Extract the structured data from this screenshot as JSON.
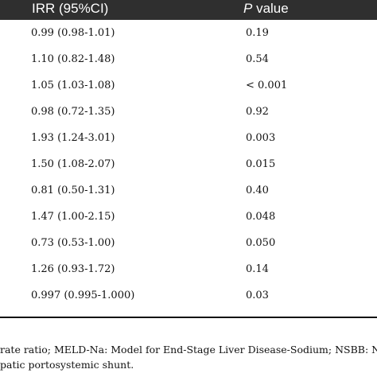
{
  "table": {
    "headers": {
      "irr": "IRR (95%CI)",
      "p_prefix": "P",
      "p_suffix": " value"
    },
    "rows": [
      {
        "irr": "0.99 (0.98-1.01)",
        "p": "0.19"
      },
      {
        "irr": "1.10 (0.82-1.48)",
        "p": "0.54"
      },
      {
        "irr": "1.05 (1.03-1.08)",
        "p": "< 0.001"
      },
      {
        "irr": "0.98 (0.72-1.35)",
        "p": "0.92"
      },
      {
        "irr": "1.93 (1.24-3.01)",
        "p": "0.003"
      },
      {
        "irr": "1.50 (1.08-2.07)",
        "p": "0.015"
      },
      {
        "irr": "0.81 (0.50-1.31)",
        "p": "0.40"
      },
      {
        "irr": "1.47 (1.00-2.15)",
        "p": "0.048"
      },
      {
        "irr": "0.73 (0.53-1.00)",
        "p": "0.050"
      },
      {
        "irr": "1.26 (0.93-1.72)",
        "p": "0.14"
      },
      {
        "irr": "0.997 (0.995-1.000)",
        "p": "0.03"
      }
    ]
  },
  "footnote": {
    "line1": "rate ratio; MELD-Na: Model for End-Stage Liver Disease-Sodium; NSBB: N",
    "line2": "patic portosystemic shunt."
  }
}
